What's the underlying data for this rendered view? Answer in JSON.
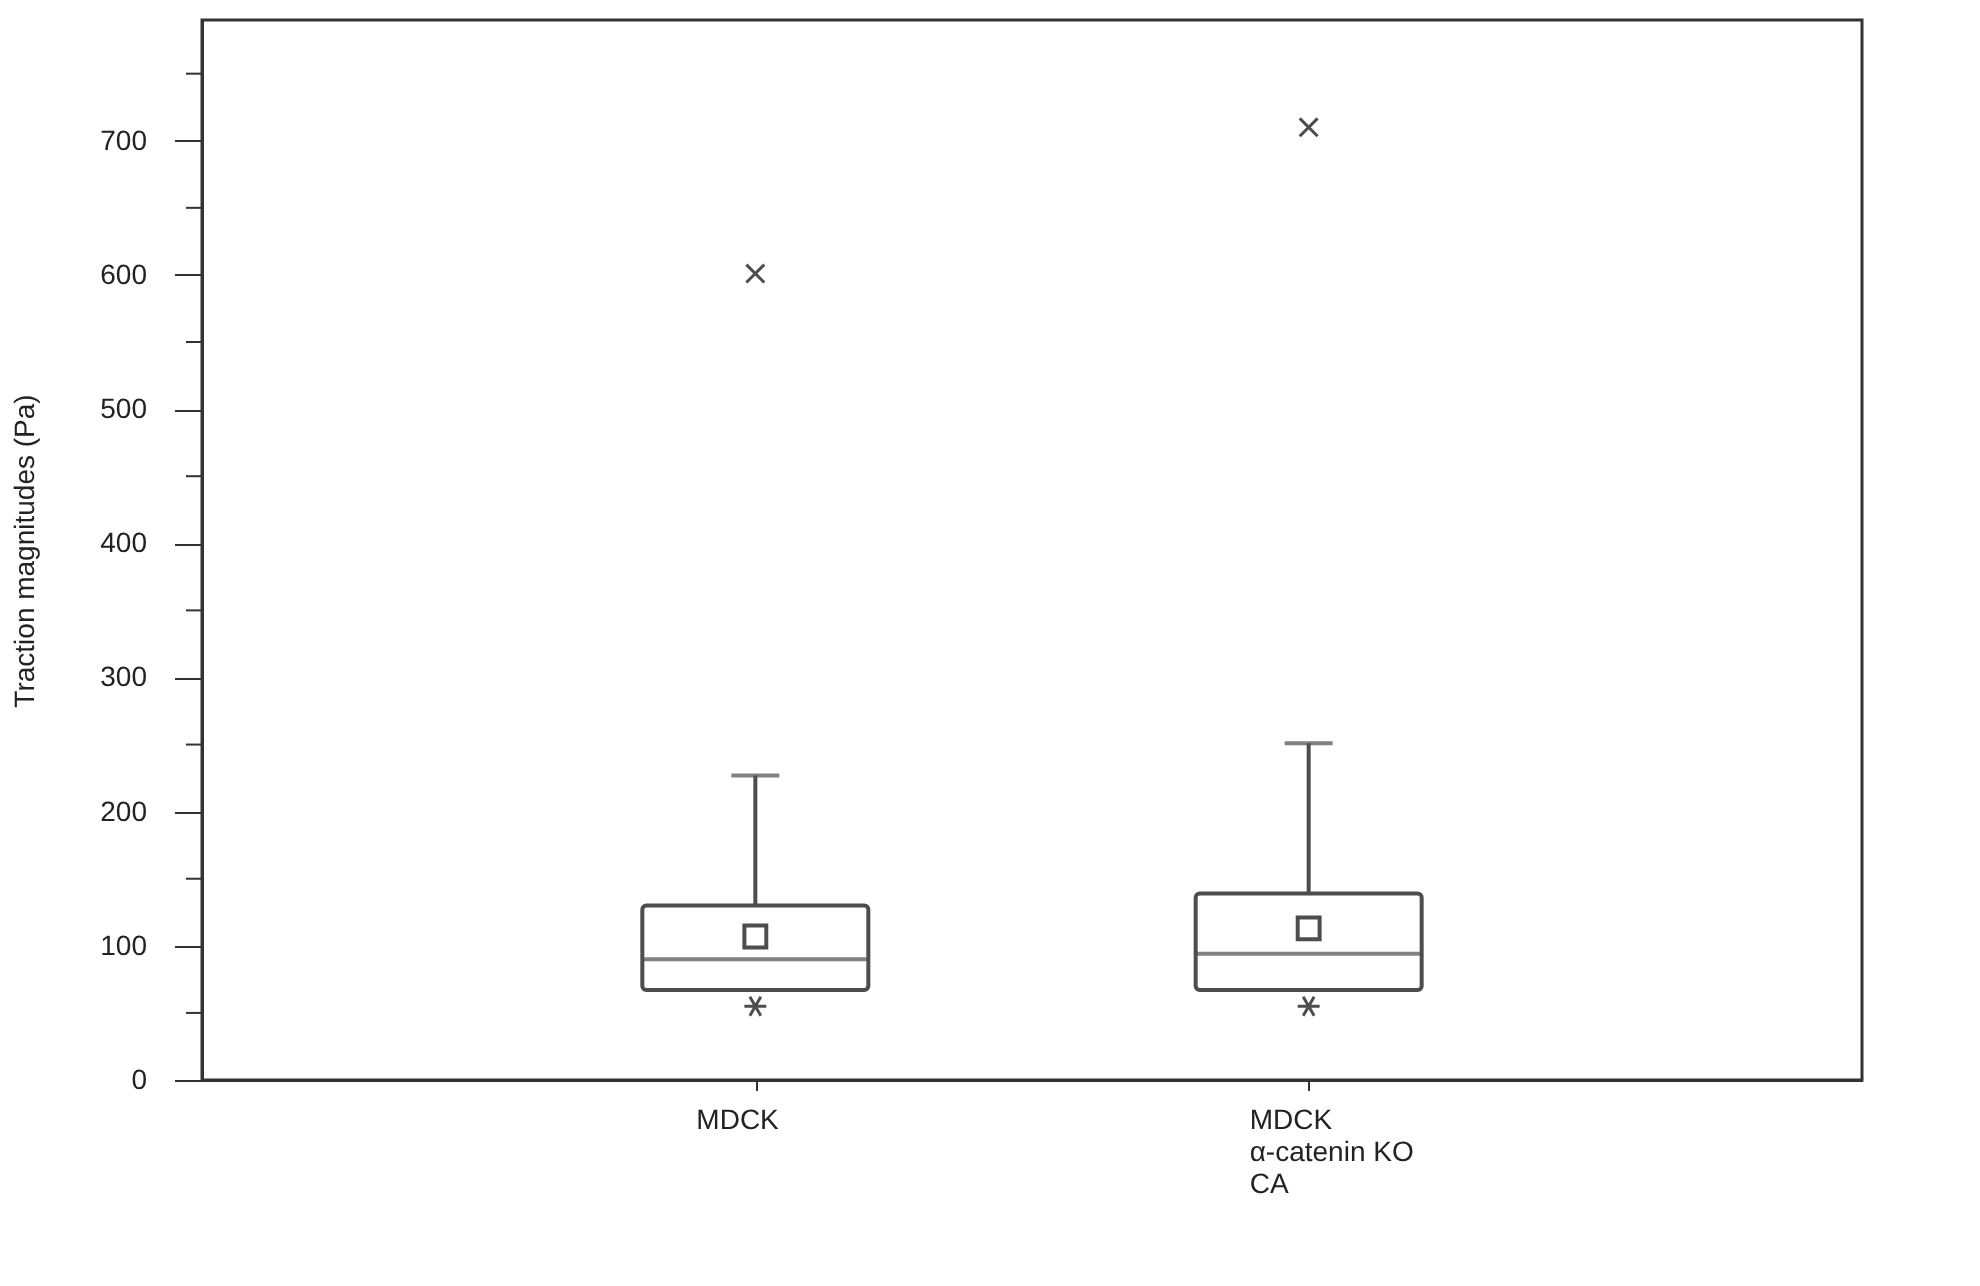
{
  "chart_data": {
    "type": "box",
    "ylabel": "Traction magnitudes (Pa)",
    "categories": [
      "MDCK",
      "MDCK\nα-catenin KO\nCA"
    ],
    "series": [
      {
        "color": "#4d4d4d",
        "boxes": [
          {
            "low": 67,
            "q1": 67,
            "median": 90,
            "q3": 130,
            "high": 227,
            "mean": 107,
            "outliers": [
              601,
              55
            ]
          },
          {
            "low": 67,
            "q1": 67,
            "median": 94,
            "q3": 139,
            "high": 251,
            "mean": 113,
            "outliers": [
              710,
              55
            ]
          }
        ]
      }
    ],
    "ylim": [
      0,
      790
    ],
    "yticks": [
      0,
      {
        "value": 50,
        "label": null
      },
      100,
      {
        "value": 150,
        "label": null
      },
      200,
      {
        "value": 250,
        "label": null
      },
      300,
      {
        "value": 350,
        "label": null
      },
      400,
      {
        "value": 450,
        "label": null
      },
      500,
      {
        "value": 550,
        "label": null
      },
      600,
      {
        "value": 650,
        "label": null
      },
      700,
      {
        "value": 750,
        "label": null
      }
    ],
    "grid": false
  }
}
